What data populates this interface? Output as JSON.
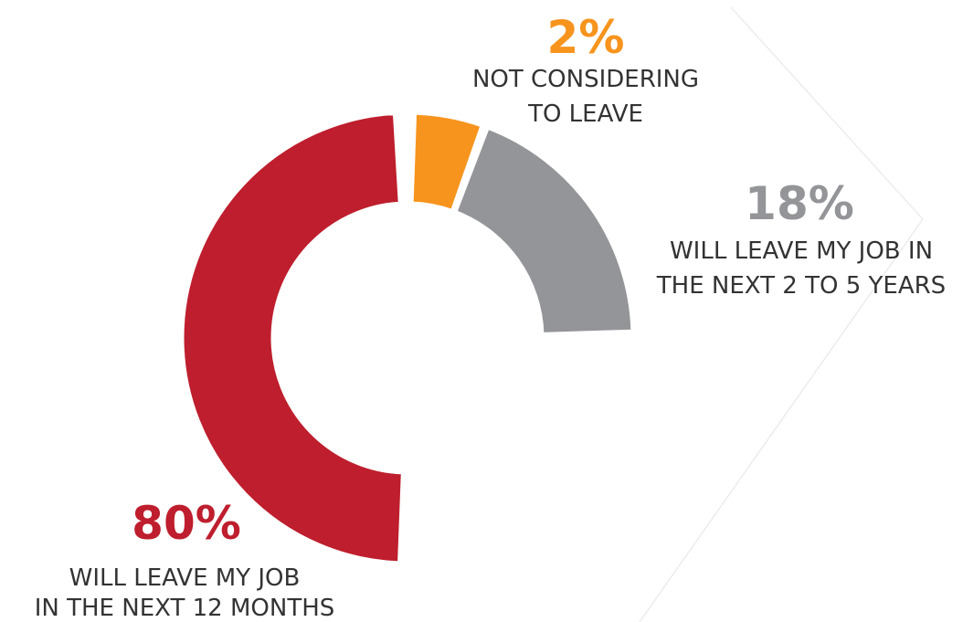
{
  "chart_data": {
    "type": "pie",
    "style": "donut",
    "slices": [
      {
        "value": 80,
        "label": "80%",
        "description": [
          "WILL LEAVE MY JOB",
          "IN THE NEXT 12 MONTHS"
        ],
        "color": "#be1e2d"
      },
      {
        "value": 2,
        "label": "2%",
        "description": [
          "NOT CONSIDERING",
          "TO LEAVE"
        ],
        "color": "#f7941d"
      },
      {
        "value": 18,
        "label": "18%",
        "description": [
          "WILL LEAVE MY JOB IN",
          "THE NEXT 2 TO 5 YEARS"
        ],
        "color": "#939598"
      }
    ]
  }
}
